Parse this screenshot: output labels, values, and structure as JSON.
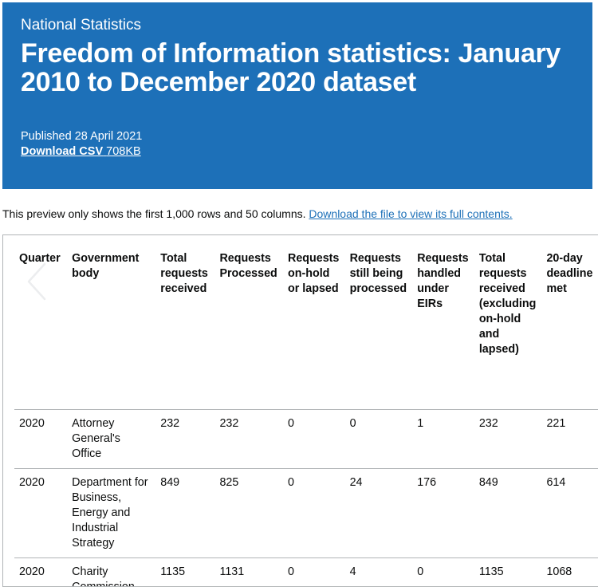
{
  "header": {
    "eyebrow": "National Statistics",
    "title": "Freedom of Information statistics: January 2010 to December 2020 dataset",
    "published": "Published 28 April 2021",
    "download_label": "Download CSV",
    "download_size": "708KB"
  },
  "preview": {
    "note": "This preview only shows the first 1,000 rows and 50 columns.",
    "link": "Download the file to view its full contents."
  },
  "table": {
    "headers": [
      "Quarter",
      "Government body",
      "Total requests received",
      "Requests Processed",
      "Requests on-hold or lapsed",
      "Requests still being processed",
      "Requests handled under EIRs",
      "Total requests received (excluding on-hold and lapsed)",
      "20-day deadline met"
    ],
    "rows": [
      [
        "2020",
        "Attorney General's Office",
        "232",
        "232",
        "0",
        "0",
        "1",
        "232",
        "221"
      ],
      [
        "2020",
        "Department for Business, Energy and Industrial Strategy",
        "849",
        "825",
        "0",
        "24",
        "176",
        "849",
        "614"
      ],
      [
        "2020",
        "Charity Commission",
        "1135",
        "1131",
        "0",
        "4",
        "0",
        "1135",
        "1068"
      ]
    ]
  },
  "colors": {
    "banner": "#1d70b8",
    "link": "#1d70b8",
    "border": "#b1b4b6"
  },
  "icons": {
    "prev": "chevron-left-icon"
  }
}
